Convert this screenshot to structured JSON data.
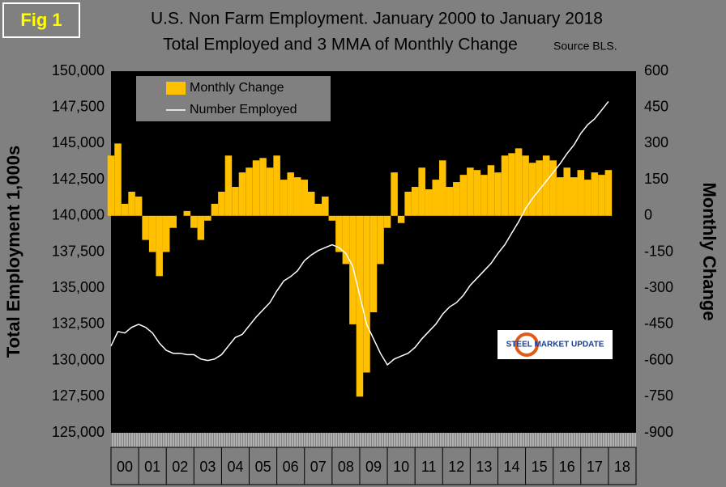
{
  "chart_data": {
    "type": "bar",
    "figure_label": "Fig 1",
    "title": "U.S. Non Farm Employment. January 2000 to January 2018",
    "subtitle": "Total Employed and 3 MMA of Monthly Change",
    "source": "Source BLS.",
    "logo": "STEEL MARKET UPDATE",
    "ylabel": "Total Employment 1,000s",
    "y2label": "Monthly Change",
    "legend": "top-left",
    "xlim": [
      2000,
      2019
    ],
    "xticks": [
      {
        "value": 2000.5,
        "label": "00"
      },
      {
        "value": 2001.5,
        "label": "01"
      },
      {
        "value": 2002.5,
        "label": "02"
      },
      {
        "value": 2003.5,
        "label": "03"
      },
      {
        "value": 2004.5,
        "label": "04"
      },
      {
        "value": 2005.5,
        "label": "05"
      },
      {
        "value": 2006.5,
        "label": "06"
      },
      {
        "value": 2007.5,
        "label": "07"
      },
      {
        "value": 2008.5,
        "label": "08"
      },
      {
        "value": 2009.5,
        "label": "09"
      },
      {
        "value": 2010.5,
        "label": "10"
      },
      {
        "value": 2011.5,
        "label": "11"
      },
      {
        "value": 2012.5,
        "label": "12"
      },
      {
        "value": 2013.5,
        "label": "13"
      },
      {
        "value": 2014.5,
        "label": "14"
      },
      {
        "value": 2015.5,
        "label": "15"
      },
      {
        "value": 2016.5,
        "label": "16"
      },
      {
        "value": 2017.5,
        "label": "17"
      },
      {
        "value": 2018.5,
        "label": "18"
      }
    ],
    "ylim": [
      125000,
      150000
    ],
    "yticks": [
      {
        "value": 125000,
        "label": "125,000"
      },
      {
        "value": 127500,
        "label": "127,500"
      },
      {
        "value": 130000,
        "label": "130,000"
      },
      {
        "value": 132500,
        "label": "132,500"
      },
      {
        "value": 135000,
        "label": "135,000"
      },
      {
        "value": 137500,
        "label": "137,500"
      },
      {
        "value": 140000,
        "label": "140,000"
      },
      {
        "value": 142500,
        "label": "142,500"
      },
      {
        "value": 145000,
        "label": "145,000"
      },
      {
        "value": 147500,
        "label": "147,500"
      },
      {
        "value": 150000,
        "label": "150,000"
      }
    ],
    "y2lim": [
      -900,
      600
    ],
    "y2ticks": [
      -900,
      -750,
      -600,
      -450,
      -300,
      -150,
      0,
      150,
      300,
      450,
      600
    ],
    "x": [
      2000,
      2000.25,
      2000.5,
      2000.75,
      2001,
      2001.25,
      2001.5,
      2001.75,
      2002,
      2002.25,
      2002.5,
      2002.75,
      2003,
      2003.25,
      2003.5,
      2003.75,
      2004,
      2004.25,
      2004.5,
      2004.75,
      2005,
      2005.25,
      2005.5,
      2005.75,
      2006,
      2006.25,
      2006.5,
      2006.75,
      2007,
      2007.25,
      2007.5,
      2007.75,
      2008,
      2008.25,
      2008.5,
      2008.75,
      2009,
      2009.25,
      2009.5,
      2009.75,
      2010,
      2010.25,
      2010.5,
      2010.75,
      2011,
      2011.25,
      2011.5,
      2011.75,
      2012,
      2012.25,
      2012.5,
      2012.75,
      2013,
      2013.25,
      2013.5,
      2013.75,
      2014,
      2014.25,
      2014.5,
      2014.75,
      2015,
      2015.25,
      2015.5,
      2015.75,
      2016,
      2016.25,
      2016.5,
      2016.75,
      2017,
      2017.25,
      2017.5,
      2017.75,
      2018
    ],
    "series": [
      {
        "name": "Monthly Change",
        "type": "bar",
        "axis": "y2",
        "color": "#ffc000",
        "values": [
          250,
          300,
          50,
          100,
          80,
          -100,
          -150,
          -250,
          -150,
          -50,
          0,
          20,
          -50,
          -100,
          -20,
          50,
          100,
          250,
          120,
          180,
          200,
          230,
          240,
          200,
          250,
          150,
          180,
          160,
          150,
          100,
          50,
          80,
          -20,
          -150,
          -200,
          -450,
          -750,
          -650,
          -400,
          -200,
          -50,
          180,
          -30,
          100,
          120,
          200,
          110,
          150,
          230,
          120,
          140,
          170,
          200,
          190,
          170,
          210,
          180,
          250,
          260,
          280,
          250,
          220,
          230,
          250,
          230,
          160,
          200,
          160,
          190,
          150,
          180,
          170,
          190
        ]
      },
      {
        "name": "Number Employed",
        "type": "line",
        "color": "#ffffff",
        "values": [
          131000,
          132000,
          131900,
          132300,
          132500,
          132300,
          131900,
          131200,
          130700,
          130500,
          130500,
          130400,
          130400,
          130100,
          130000,
          130100,
          130400,
          131000,
          131600,
          131800,
          132400,
          133000,
          133500,
          134000,
          134800,
          135500,
          135800,
          136200,
          136900,
          137300,
          137600,
          137800,
          138000,
          137800,
          137400,
          136500,
          134500,
          132500,
          131500,
          130500,
          129700,
          130100,
          130300,
          130500,
          130900,
          131500,
          132000,
          132500,
          133200,
          133700,
          134000,
          134500,
          135200,
          135700,
          136200,
          136700,
          137400,
          138000,
          138800,
          139600,
          140500,
          141200,
          141800,
          142400,
          143000,
          143600,
          144300,
          144900,
          145700,
          146300,
          146700,
          147300,
          147900
        ]
      }
    ]
  }
}
